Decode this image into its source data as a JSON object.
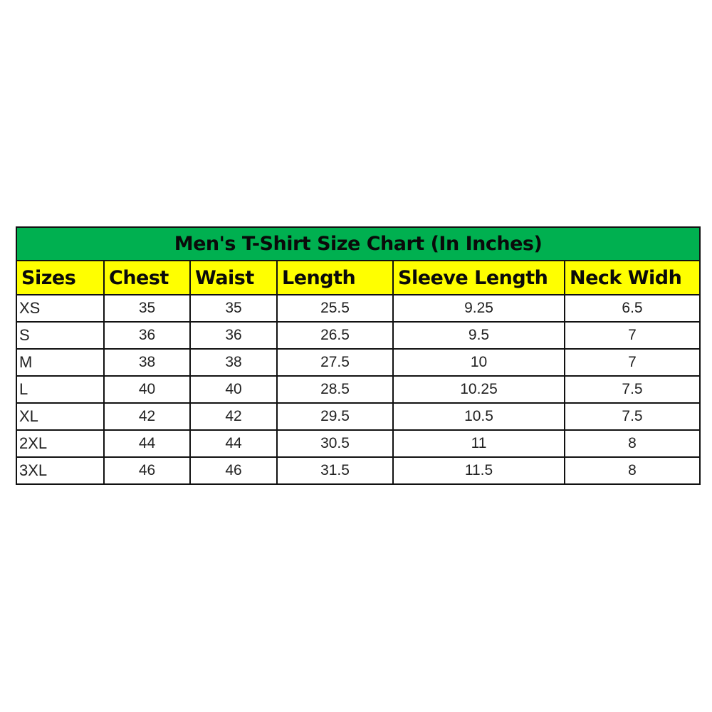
{
  "title": "Men's T-Shirt Size Chart (In Inches)",
  "headers": [
    "Sizes",
    "Chest",
    "Waist",
    "Length",
    "Sleeve Length",
    "Neck Widh"
  ],
  "rows": [
    [
      "XS",
      "35",
      "35",
      "25.5",
      "9.25",
      "6.5"
    ],
    [
      "S",
      "36",
      "36",
      "26.5",
      "9.5",
      "7"
    ],
    [
      "M",
      "38",
      "38",
      "27.5",
      "10",
      "7"
    ],
    [
      "L",
      "40",
      "40",
      "28.5",
      "10.25",
      "7.5"
    ],
    [
      "XL",
      "42",
      "42",
      "29.5",
      "10.5",
      "7.5"
    ],
    [
      "2XL",
      "44",
      "44",
      "30.5",
      "11",
      "8"
    ],
    [
      "3XL",
      "46",
      "46",
      "31.5",
      "11.5",
      "8"
    ]
  ],
  "colors": {
    "title_bg": "#00b050",
    "header_bg": "#ffff00"
  }
}
